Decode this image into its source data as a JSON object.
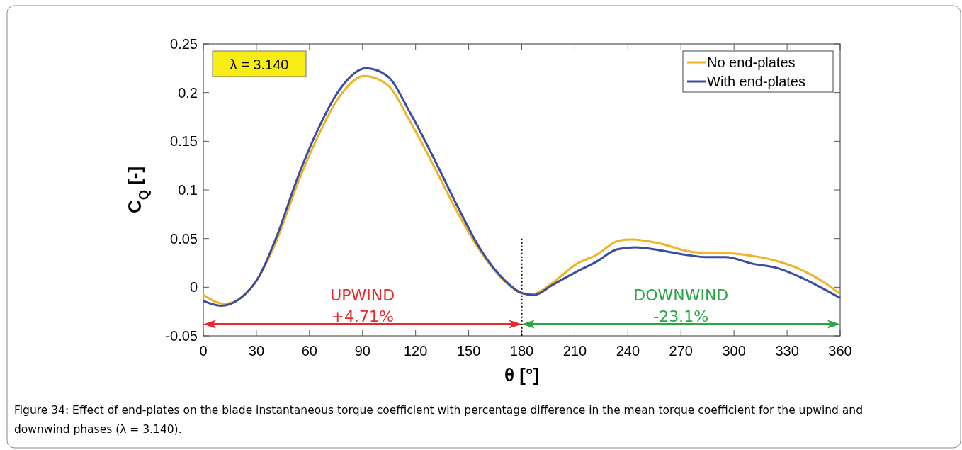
{
  "chart_data": {
    "type": "line",
    "xlabel": "θ [°]",
    "ylabel": "C$_{Q}$ [-]",
    "xlim": [
      0,
      360
    ],
    "xticks": [
      0,
      30,
      60,
      90,
      120,
      150,
      180,
      210,
      240,
      270,
      300,
      330,
      360
    ],
    "ylim": [
      -0.05,
      0.25
    ],
    "yticks": [
      -0.05,
      0,
      0.05,
      0.1,
      0.15,
      0.2,
      0.25
    ],
    "legend": "top right",
    "grid": false,
    "marker": "none",
    "line_style": "solid",
    "series": [
      {
        "name": "No end-plates",
        "color": "#f0b323",
        "x": [
          0,
          12,
          29,
          41,
          53,
          64,
          77,
          91,
          104,
          117,
          131,
          144,
          157,
          171,
          180,
          186,
          197,
          211,
          222,
          235,
          242,
          258,
          274,
          284,
          295,
          311,
          324,
          338,
          351,
          360
        ],
        "values": [
          -0.008,
          -0.017,
          0.004,
          0.046,
          0.105,
          0.152,
          0.196,
          0.217,
          0.208,
          0.17,
          0.122,
          0.076,
          0.036,
          0.005,
          -0.006,
          -0.007,
          0.004,
          0.024,
          0.033,
          0.048,
          0.049,
          0.045,
          0.037,
          0.035,
          0.035,
          0.032,
          0.027,
          0.018,
          0.005,
          -0.007
        ]
      },
      {
        "name": "With end-plates",
        "color": "#3a4da3",
        "x": [
          0,
          10,
          29,
          41,
          53,
          64,
          77,
          92,
          104,
          117,
          131,
          144,
          157,
          171,
          180,
          187,
          197,
          211,
          222,
          234,
          244,
          258,
          274,
          284,
          295,
          311,
          324,
          338,
          351,
          360
        ],
        "values": [
          -0.014,
          -0.019,
          0.004,
          0.05,
          0.111,
          0.159,
          0.203,
          0.225,
          0.217,
          0.179,
          0.13,
          0.082,
          0.038,
          0.006,
          -0.006,
          -0.008,
          0.002,
          0.016,
          0.026,
          0.039,
          0.041,
          0.038,
          0.033,
          0.031,
          0.031,
          0.024,
          0.02,
          0.01,
          -0.002,
          -0.011
        ]
      }
    ],
    "ref_lines": [
      {
        "axis": "x",
        "value": 180,
        "line_style": "dotted",
        "color": "#000000"
      }
    ],
    "annotations": [
      "λ = 3.140",
      "UPWIND\n+4.71%",
      "DOWNWIND\n-23.1%",
      "Figure 34: Effect of end-plates on the blade instantaneous torque coefficient with percentage difference in the mean torque coefficient for the upwind and downwind phases (λ = 3.140)."
    ]
  }
}
